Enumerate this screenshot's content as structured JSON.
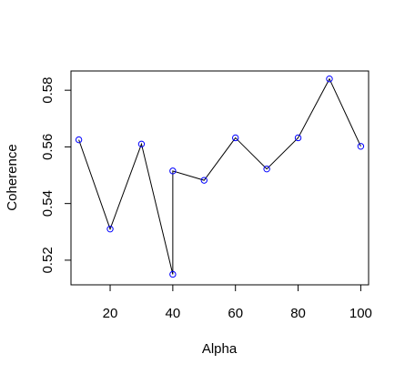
{
  "chart_data": {
    "type": "line",
    "title": "",
    "xlabel": "Alpha",
    "ylabel": "Coherence",
    "x": [
      10,
      20,
      30,
      40,
      40,
      50,
      60,
      70,
      80,
      90,
      100
    ],
    "series": [
      {
        "values": [
          0.5625,
          0.531,
          0.561,
          0.515,
          0.5515,
          0.5482,
          0.5632,
          0.5522,
          0.5632,
          0.584,
          0.5602
        ]
      }
    ],
    "xlim": [
      7.5,
      102.5
    ],
    "ylim": [
      0.5113,
      0.5868
    ],
    "xticks": [
      20,
      40,
      60,
      80,
      100
    ],
    "yticks": [
      0.52,
      0.54,
      0.56,
      0.58
    ],
    "xtick_labels": [
      "20",
      "40",
      "60",
      "80",
      "100"
    ],
    "ytick_labels": [
      "0.52",
      "0.54",
      "0.56",
      "0.58"
    ],
    "grid": false,
    "legend": "none",
    "point_shape": "open-circle",
    "line_color": "#000000",
    "point_color": "#0000ff"
  }
}
